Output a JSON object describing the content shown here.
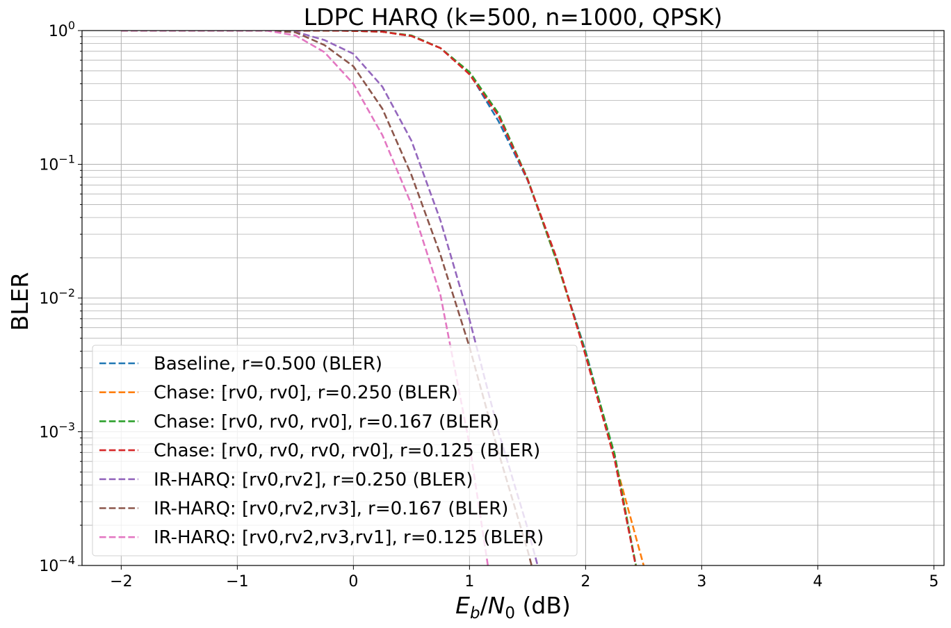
{
  "chart_data": {
    "type": "line",
    "title": "LDPC HARQ (k=500, n=1000, QPSK)",
    "xlabel": "E_b/N_0 (dB)",
    "ylabel": "BLER",
    "xlim": [
      -2.3375,
      5.0875
    ],
    "ylim": [
      0.0001,
      1
    ],
    "yscale": "log",
    "grid": true,
    "legend_position": "lower-left",
    "xticks": [
      -2,
      -1,
      0,
      1,
      2,
      3,
      4,
      5
    ],
    "xtick_labels": [
      "−2",
      "−1",
      "0",
      "1",
      "2",
      "3",
      "4",
      "5"
    ],
    "yticks": [
      1,
      0.1,
      0.01,
      0.001,
      0.0001
    ],
    "ytick_labels": [
      {
        "base": "10",
        "exp": "0"
      },
      {
        "base": "10",
        "exp": "−1"
      },
      {
        "base": "10",
        "exp": "−2"
      },
      {
        "base": "10",
        "exp": "−3"
      },
      {
        "base": "10",
        "exp": "−4"
      }
    ],
    "x": [
      -2,
      -1.75,
      -1.5,
      -1.25,
      -1,
      -0.75,
      -0.5,
      -0.25,
      0,
      0.25,
      0.5,
      0.75,
      1,
      1.25,
      1.5,
      1.75,
      2,
      2.25,
      2.5,
      2.75
    ],
    "series": [
      {
        "name": "Baseline, r=0.500 (BLER)",
        "color": "#1f77b4",
        "values": [
          1,
          1,
          1,
          1,
          1,
          1,
          1,
          1,
          0.995,
          0.98,
          0.91,
          0.74,
          0.48,
          0.21,
          0.076,
          0.019,
          0.004,
          0.00065,
          5e-05,
          null
        ]
      },
      {
        "name": "Chase: [rv0, rv0], r=0.250 (BLER)",
        "color": "#ff7f0e",
        "values": [
          1,
          1,
          1,
          1,
          1,
          1,
          1,
          1,
          0.995,
          0.98,
          0.91,
          0.74,
          0.48,
          0.23,
          0.077,
          0.019,
          0.0038,
          0.00062,
          0.0001,
          2e-05
        ]
      },
      {
        "name": "Chase: [rv0, rv0, rv0], r=0.167 (BLER)",
        "color": "#2ca02c",
        "values": [
          1,
          1,
          1,
          1,
          1,
          1,
          1,
          1,
          0.995,
          0.98,
          0.92,
          0.74,
          0.49,
          0.24,
          0.078,
          0.019,
          0.0039,
          0.00068,
          5e-05,
          null
        ]
      },
      {
        "name": "Chase: [rv0, rv0, rv0, rv0], r=0.125 (BLER)",
        "color": "#d62728",
        "values": [
          1,
          1,
          1,
          1,
          1,
          1,
          1,
          1,
          0.995,
          0.98,
          0.91,
          0.74,
          0.47,
          0.23,
          0.077,
          0.02,
          0.0037,
          0.00062,
          5e-05,
          null
        ]
      },
      {
        "name": "IR-HARQ: [rv0,rv2], r=0.250 (BLER)",
        "color": "#9467bd",
        "values": [
          1,
          1,
          1,
          1,
          1,
          1,
          0.98,
          0.85,
          0.67,
          0.38,
          0.15,
          0.038,
          0.0069,
          0.001,
          0.00019,
          3e-05,
          null,
          null,
          null,
          null
        ]
      },
      {
        "name": "IR-HARQ: [rv0,rv2,rv3], r=0.167 (BLER)",
        "color": "#8c564b",
        "values": [
          1,
          1,
          1,
          1,
          1,
          1,
          0.97,
          0.78,
          0.54,
          0.26,
          0.083,
          0.021,
          0.0043,
          0.0007,
          0.00013,
          2e-05,
          null,
          null,
          null,
          null
        ]
      },
      {
        "name": "IR-HARQ: [rv0,rv2,rv3,rv1], r=0.125 (BLER)",
        "color": "#e377c2",
        "values": [
          1,
          1,
          1,
          1,
          1,
          1,
          0.92,
          0.69,
          0.4,
          0.165,
          0.05,
          0.0105,
          0.0008,
          3e-05,
          null,
          null,
          null,
          null,
          null,
          null
        ]
      }
    ]
  }
}
